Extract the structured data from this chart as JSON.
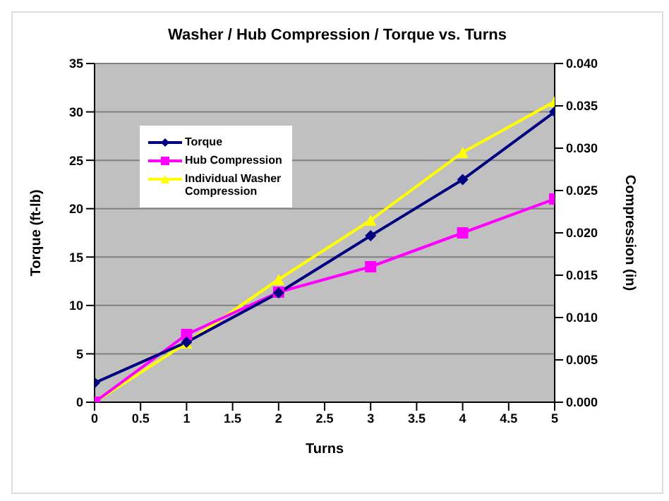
{
  "chart_data": {
    "type": "line",
    "title": "Washer / Hub Compression / Torque vs. Turns",
    "xlabel": "Turns",
    "ylabel": "Torque (ft-lb)",
    "y2label": "Compression (in)",
    "x": [
      0,
      1,
      2,
      3,
      4,
      5
    ],
    "series": [
      {
        "name": "Torque",
        "color": "#000080",
        "marker": "diamond",
        "values": [
          2,
          6.2,
          11.3,
          17.2,
          23,
          30
        ]
      },
      {
        "name": "Hub Compression",
        "color": "#ff00ff",
        "marker": "square",
        "axis": "y2",
        "values": [
          0,
          0.008,
          0.013,
          0.016,
          0.02,
          0.024
        ]
      },
      {
        "name": "Individual Washer Compression",
        "color": "#ffff00",
        "marker": "triangle",
        "axis": "y2",
        "values": [
          0,
          0.007,
          0.0145,
          0.0215,
          0.0295,
          0.0355
        ]
      }
    ],
    "xlim": [
      0,
      5
    ],
    "xticks": [
      0,
      0.5,
      1,
      1.5,
      2,
      2.5,
      3,
      3.5,
      4,
      4.5,
      5
    ],
    "ylim": [
      0,
      35
    ],
    "yticks": [
      0,
      5,
      10,
      15,
      20,
      25,
      30,
      35
    ],
    "y2lim": [
      0,
      0.04
    ],
    "y2ticks": [
      {
        "value": 0,
        "label": "0.000"
      },
      {
        "value": 0.005,
        "label": "0.005"
      },
      {
        "value": 0.01,
        "label": "0.010"
      },
      {
        "value": 0.015,
        "label": "0.015"
      },
      {
        "value": 0.02,
        "label": "0.020"
      },
      {
        "value": 0.025,
        "label": "0.025"
      },
      {
        "value": 0.03,
        "label": "0.030"
      },
      {
        "value": 0.035,
        "label": "0.035"
      },
      {
        "value": 0.04,
        "label": "0.040"
      }
    ],
    "grid": "y",
    "legend": "top left"
  }
}
